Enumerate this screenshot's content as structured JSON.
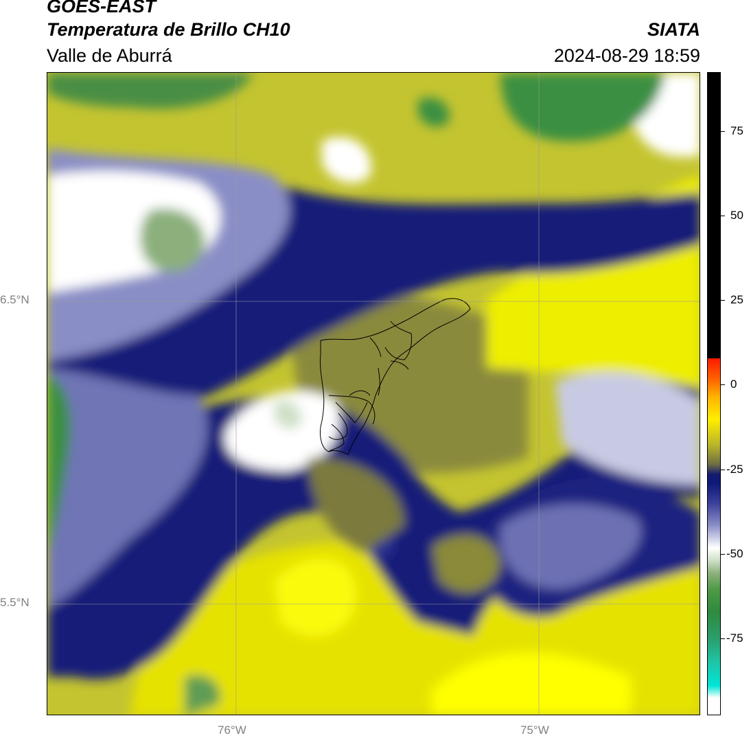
{
  "header": {
    "satellite": "GOES-EAST",
    "product": "Temperatura de Brillo CH10",
    "region": "Valle de Aburrá",
    "organization": "SIATA",
    "timestamp": "2024-08-29 18:59"
  },
  "map": {
    "lat_labels": [
      "6.5°N",
      "5.5°N"
    ],
    "lon_labels": [
      "76°W",
      "75°W"
    ]
  },
  "colorbar": {
    "tick_labels": [
      "75",
      "50",
      "25",
      "0",
      "-25",
      "-50",
      "-75"
    ]
  },
  "colors": {
    "cold_cloud_green": "#3a8a3c",
    "cloud_white": "#ffffff",
    "mid_cloud_navy": "#0e1a7a",
    "warm_yellow": "#e8e800",
    "surface_olive": "#9a9a38"
  }
}
